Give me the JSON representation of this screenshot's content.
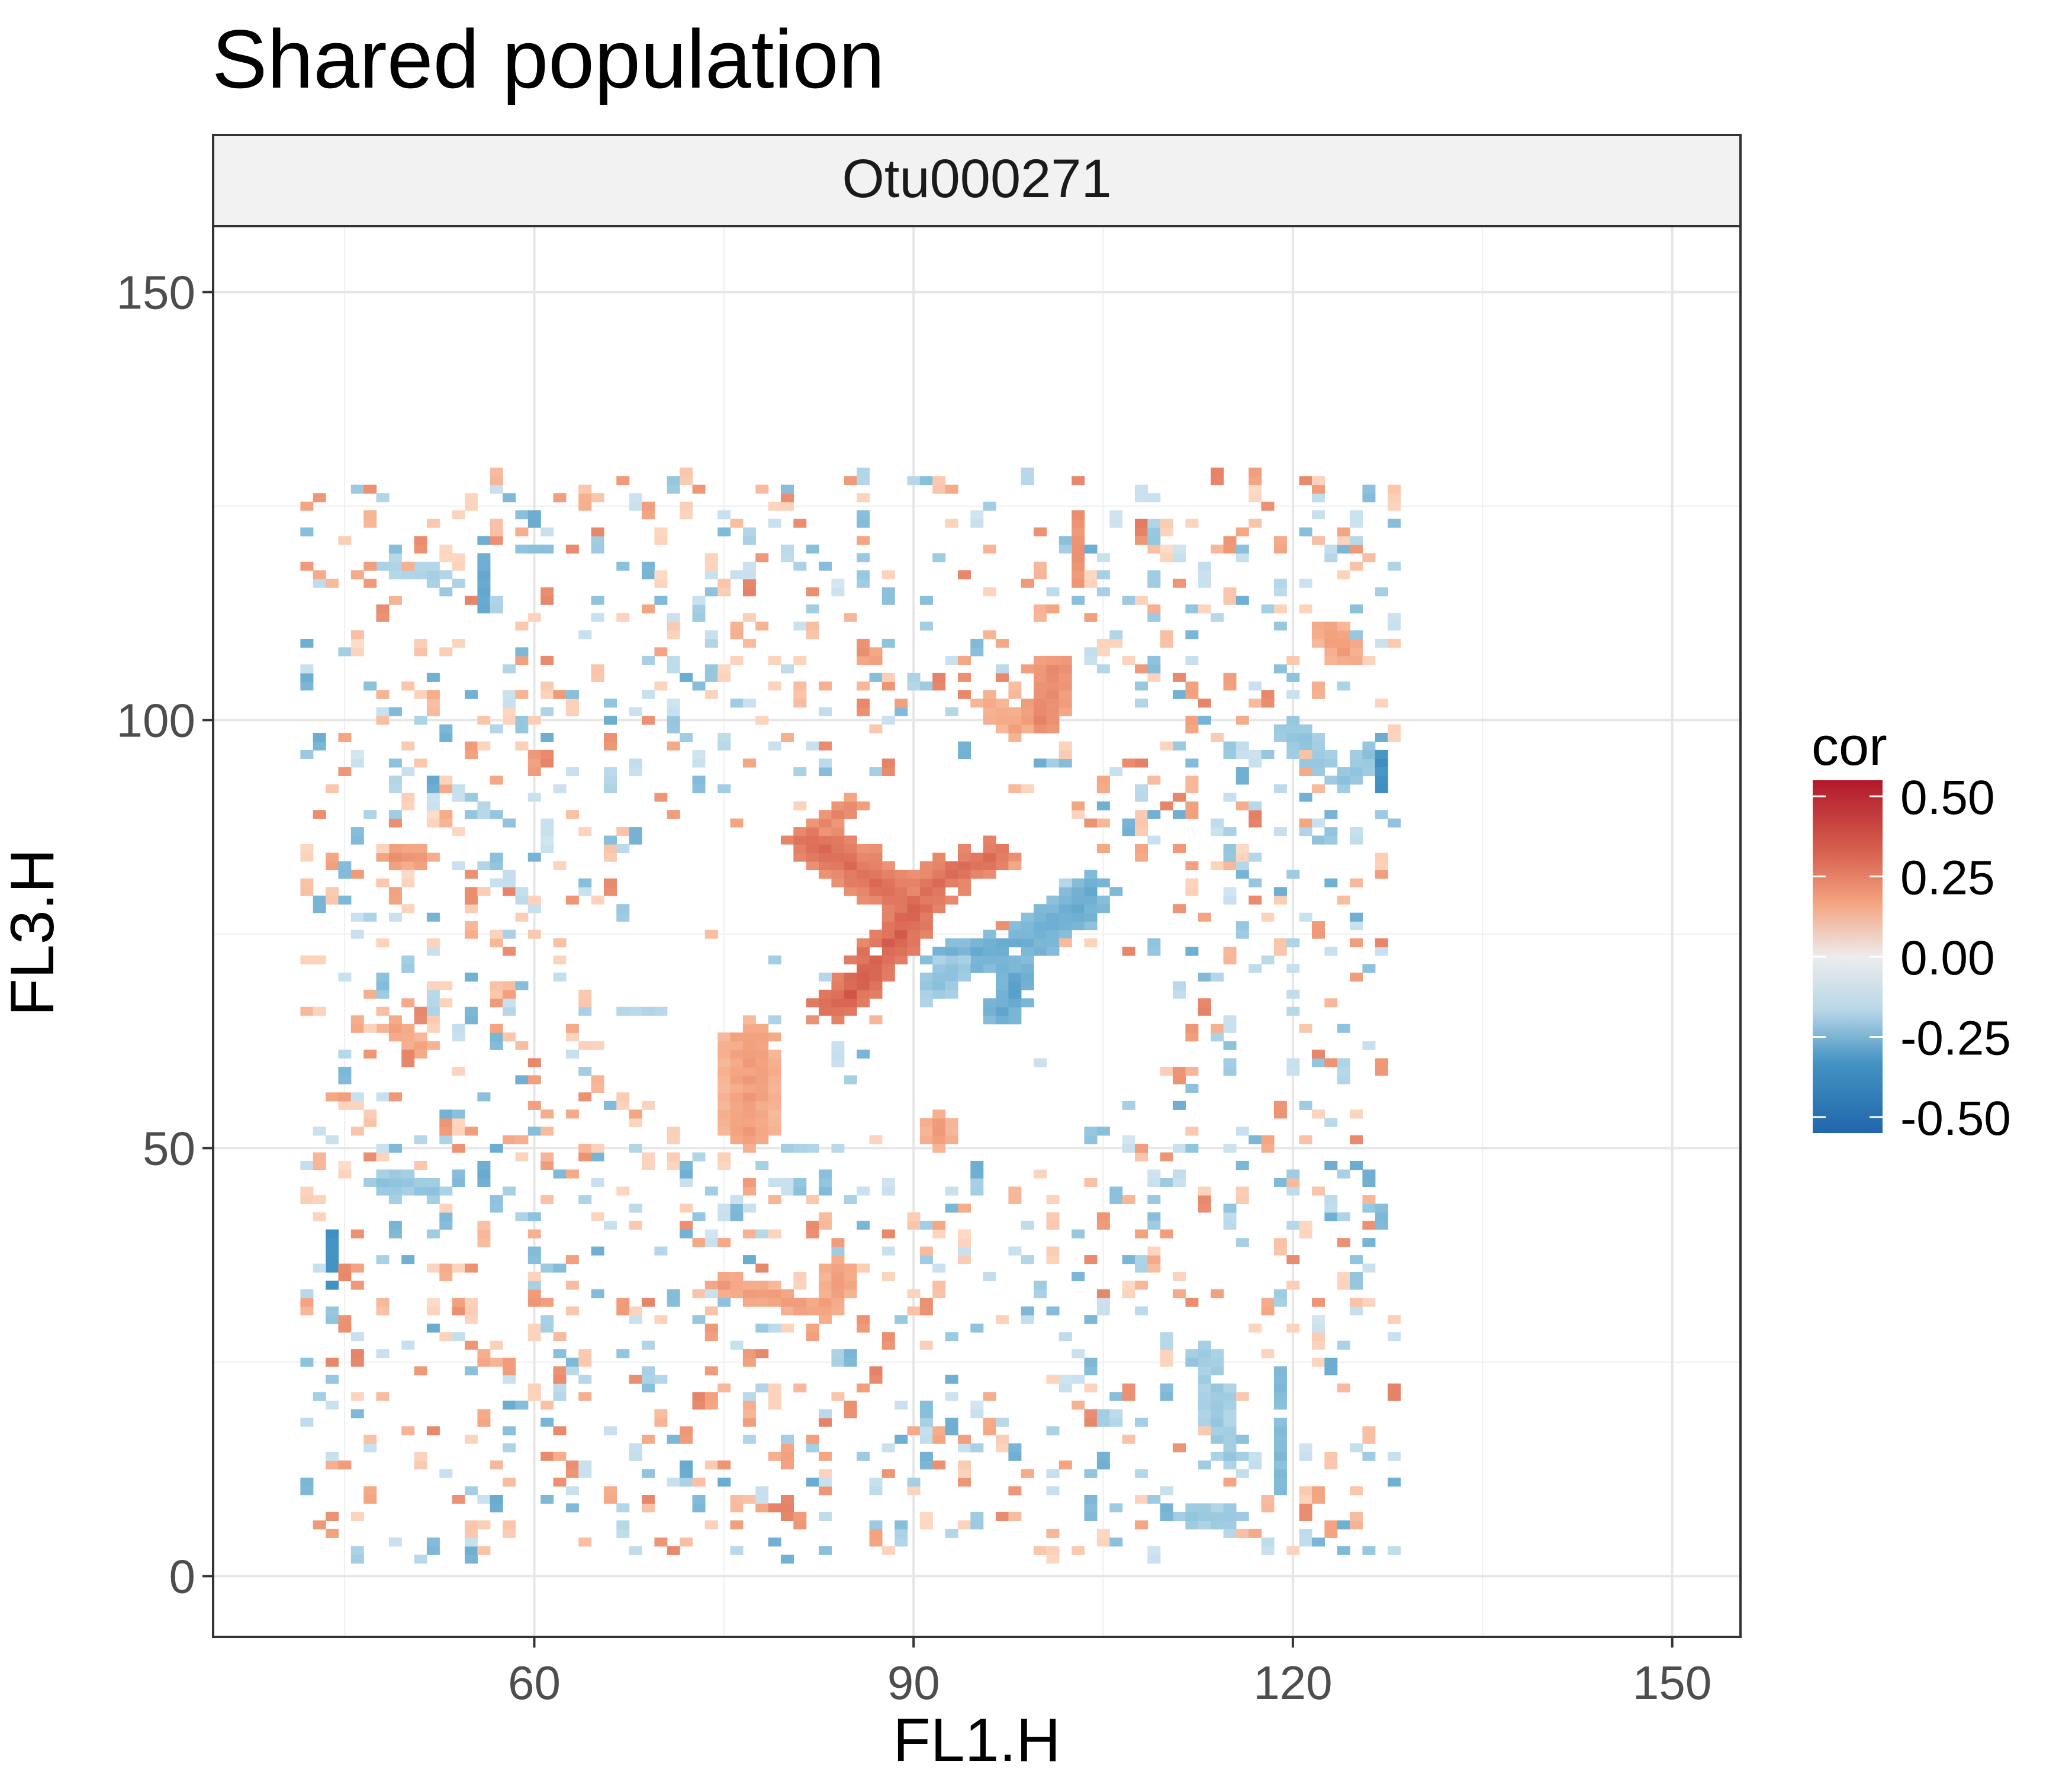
{
  "title": "Shared population",
  "chart_data": {
    "type": "heatmap",
    "title": "Shared population",
    "facet_label": "Otu000271",
    "xlabel": "FL1.H",
    "ylabel": "FL3.H",
    "x_ticks": [
      60,
      90,
      120,
      150
    ],
    "y_ticks": [
      0,
      50,
      100,
      150
    ],
    "xlim": [
      34.6,
      155.4
    ],
    "ylim": [
      -7.1,
      157.7
    ],
    "grid": true,
    "legend": {
      "title": "cor",
      "position": "right",
      "range": [
        -0.55,
        0.55
      ],
      "ticks": [
        {
          "value": 0.5,
          "label": "0.50"
        },
        {
          "value": 0.25,
          "label": "0.25"
        },
        {
          "value": 0.0,
          "label": "0.00"
        },
        {
          "value": -0.25,
          "label": "-0.25"
        },
        {
          "value": -0.5,
          "label": "-0.50"
        }
      ]
    },
    "colors": {
      "high": "#b2182b",
      "mid_high": "#ef8a62",
      "mid_low": "#fddbc7",
      "mid": "#eeeeee",
      "neg_low": "#d1e5f0",
      "neg_mid": "#67a9cf",
      "low": "#2166ac"
    },
    "cell_size": [
      1,
      1
    ],
    "blobs": [
      {
        "points": [
          [
            82,
            86
          ],
          [
            84,
            84
          ],
          [
            86,
            82
          ],
          [
            88,
            80
          ],
          [
            90,
            79
          ],
          [
            92,
            81
          ],
          [
            94,
            83
          ],
          [
            96,
            84
          ]
        ],
        "r": 2.2,
        "value": 0.36
      },
      {
        "points": [
          [
            90,
            78
          ],
          [
            89,
            75
          ],
          [
            87,
            72
          ],
          [
            86,
            70
          ],
          [
            85,
            68
          ],
          [
            84,
            67
          ]
        ],
        "r": 2.0,
        "value": 0.4
      },
      {
        "points": [
          [
            93,
            72
          ],
          [
            96,
            73
          ],
          [
            99,
            74
          ],
          [
            101,
            76
          ],
          [
            103,
            78
          ],
          [
            104,
            80
          ]
        ],
        "r": 2.2,
        "value": -0.3
      },
      {
        "points": [
          [
            93,
            71
          ],
          [
            92,
            69
          ]
        ],
        "r": 1.6,
        "value": -0.2
      },
      {
        "points": [
          [
            98,
            70
          ],
          [
            98,
            68
          ],
          [
            97,
            66
          ]
        ],
        "r": 1.6,
        "value": -0.32
      },
      {
        "points": [
          [
            77,
            63
          ],
          [
            77,
            59
          ],
          [
            77,
            55
          ],
          [
            77,
            52
          ]
        ],
        "r": 2.0,
        "value": 0.22
      },
      {
        "points": [
          [
            75,
            34
          ],
          [
            78,
            33
          ],
          [
            81,
            32
          ],
          [
            83,
            31
          ],
          [
            84,
            33
          ],
          [
            84,
            36
          ]
        ],
        "r": 1.3,
        "value": 0.22
      },
      {
        "points": [
          [
            101,
            106
          ],
          [
            101,
            103
          ],
          [
            100,
            100
          ]
        ],
        "r": 1.6,
        "value": 0.28
      },
      {
        "points": [
          [
            96,
            102
          ],
          [
            98,
            99
          ]
        ],
        "r": 1.2,
        "value": 0.2
      },
      {
        "points": [
          [
            123,
            110
          ],
          [
            124,
            108
          ]
        ],
        "r": 1.5,
        "value": 0.22
      },
      {
        "points": [
          [
            120,
            99
          ],
          [
            122,
            95
          ],
          [
            124,
            93
          ],
          [
            126,
            96
          ]
        ],
        "r": 1.4,
        "value": -0.2
      },
      {
        "points": [
          [
            127,
            96
          ],
          [
            127,
            92
          ]
        ],
        "r": 0.9,
        "value": -0.4
      },
      {
        "points": [
          [
            56,
            122
          ],
          [
            56,
            119
          ],
          [
            56,
            116
          ],
          [
            56,
            113
          ]
        ],
        "r": 0.8,
        "value": -0.3
      },
      {
        "points": [
          [
            49,
            118
          ],
          [
            52,
            117
          ]
        ],
        "r": 1.2,
        "value": -0.15
      },
      {
        "points": [
          [
            59,
            120
          ],
          [
            61,
            120
          ]
        ],
        "r": 0.9,
        "value": -0.22
      },
      {
        "points": [
          [
            44,
            40
          ],
          [
            44,
            37
          ],
          [
            44,
            34
          ]
        ],
        "r": 0.9,
        "value": -0.4
      },
      {
        "points": [
          [
            48,
            46
          ],
          [
            50,
            46
          ],
          [
            52,
            45
          ]
        ],
        "r": 1.2,
        "value": -0.2
      },
      {
        "points": [
          [
            56,
            48
          ],
          [
            56,
            46
          ]
        ],
        "r": 0.8,
        "value": -0.3
      },
      {
        "points": [
          [
            49,
            84
          ],
          [
            51,
            84
          ]
        ],
        "r": 1.1,
        "value": 0.25
      },
      {
        "points": [
          [
            49,
            64
          ],
          [
            51,
            62
          ]
        ],
        "r": 1.3,
        "value": 0.2
      },
      {
        "points": [
          [
            67,
            66
          ],
          [
            70,
            66
          ]
        ],
        "r": 0.8,
        "value": -0.12
      },
      {
        "points": [
          [
            113,
            26
          ],
          [
            114,
            22
          ],
          [
            114,
            18
          ],
          [
            115,
            14
          ]
        ],
        "r": 1.2,
        "value": -0.18
      },
      {
        "points": [
          [
            119,
            24
          ],
          [
            119,
            19
          ],
          [
            119,
            14
          ],
          [
            119,
            10
          ]
        ],
        "r": 0.9,
        "value": -0.24
      },
      {
        "points": [
          [
            112,
            7
          ],
          [
            115,
            7
          ]
        ],
        "r": 1.0,
        "value": -0.2
      },
      {
        "points": [
          [
            104,
            9
          ],
          [
            104,
            7
          ]
        ],
        "r": 0.8,
        "value": -0.25
      },
      {
        "points": [
          [
            103,
            124
          ],
          [
            103,
            116
          ]
        ],
        "r": 0.7,
        "value": 0.25
      },
      {
        "points": [
          [
            109,
            44
          ],
          [
            109,
            42
          ]
        ],
        "r": 0.8,
        "value": -0.2
      },
      {
        "points": [
          [
            92,
            53
          ],
          [
            92,
            51
          ]
        ],
        "r": 1.0,
        "value": 0.22
      },
      {
        "points": [
          [
            80,
            50
          ],
          [
            82,
            50
          ]
        ],
        "r": 0.8,
        "value": -0.15
      },
      {
        "points": [
          [
            60,
            96
          ],
          [
            60,
            94
          ]
        ],
        "r": 0.9,
        "value": 0.22
      },
      {
        "points": [
          [
            108,
            95
          ],
          [
            106,
            95
          ]
        ],
        "r": 0.8,
        "value": 0.28
      },
      {
        "points": [
          [
            108,
            123
          ],
          [
            108,
            121
          ]
        ],
        "r": 0.7,
        "value": 0.3
      },
      {
        "points": [
          [
            85,
            90
          ],
          [
            83,
            88
          ]
        ],
        "r": 1.0,
        "value": 0.3
      }
    ],
    "scatter": {
      "x_range": [
        42,
        128
      ],
      "y_range": [
        2,
        128
      ],
      "density": 0.14,
      "value_range": [
        -0.3,
        0.3
      ],
      "center_void": {
        "center": [
          88,
          70
        ],
        "radius": 24
      }
    }
  }
}
